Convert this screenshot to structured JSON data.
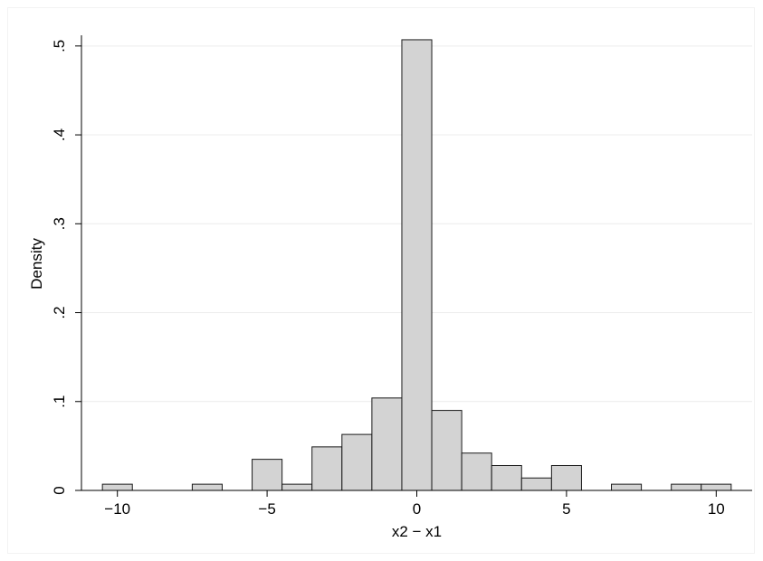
{
  "chart_data": {
    "type": "bar",
    "subtype": "histogram",
    "xlabel": "x2 − x1",
    "ylabel": "Density",
    "xlim": [
      -11.2,
      11.2
    ],
    "ylim": [
      0,
      0.51
    ],
    "bin_width": 1,
    "x_ticks": [
      {
        "value": -10,
        "label": "−10"
      },
      {
        "value": -5,
        "label": "−5"
      },
      {
        "value": 0,
        "label": "0"
      },
      {
        "value": 5,
        "label": "5"
      },
      {
        "value": 10,
        "label": "10"
      }
    ],
    "y_ticks": [
      {
        "value": 0,
        "label": "0"
      },
      {
        "value": 0.1,
        "label": ".1"
      },
      {
        "value": 0.2,
        "label": ".2"
      },
      {
        "value": 0.3,
        "label": ".3"
      },
      {
        "value": 0.4,
        "label": ".4"
      },
      {
        "value": 0.5,
        "label": ".5"
      }
    ],
    "bins": [
      {
        "x0": -10.5,
        "x1": -9.5,
        "density": 0.007
      },
      {
        "x0": -7.5,
        "x1": -6.5,
        "density": 0.007
      },
      {
        "x0": -5.5,
        "x1": -4.5,
        "density": 0.035
      },
      {
        "x0": -4.5,
        "x1": -3.5,
        "density": 0.007
      },
      {
        "x0": -3.5,
        "x1": -2.5,
        "density": 0.049
      },
      {
        "x0": -2.5,
        "x1": -1.5,
        "density": 0.063
      },
      {
        "x0": -1.5,
        "x1": -0.5,
        "density": 0.104
      },
      {
        "x0": -0.5,
        "x1": 0.5,
        "density": 0.507
      },
      {
        "x0": 0.5,
        "x1": 1.5,
        "density": 0.09
      },
      {
        "x0": 1.5,
        "x1": 2.5,
        "density": 0.042
      },
      {
        "x0": 2.5,
        "x1": 3.5,
        "density": 0.028
      },
      {
        "x0": 3.5,
        "x1": 4.5,
        "density": 0.014
      },
      {
        "x0": 4.5,
        "x1": 5.5,
        "density": 0.028
      },
      {
        "x0": 6.5,
        "x1": 7.5,
        "density": 0.007
      },
      {
        "x0": 8.5,
        "x1": 9.5,
        "density": 0.007
      },
      {
        "x0": 9.5,
        "x1": 10.5,
        "density": 0.007
      }
    ],
    "grid": true,
    "colors": {
      "bar_fill": "#d3d3d3",
      "bar_stroke": "#1a1a1a",
      "grid": "#ececec",
      "axis": "#000000"
    }
  }
}
